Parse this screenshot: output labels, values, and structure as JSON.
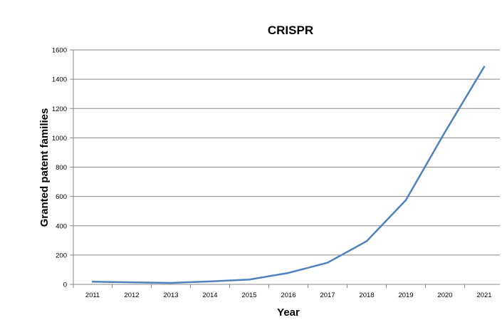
{
  "chart_data": {
    "type": "line",
    "title": "CRISPR",
    "xlabel": "Year",
    "ylabel": "Granted patent families",
    "categories": [
      "2011",
      "2012",
      "2013",
      "2014",
      "2015",
      "2016",
      "2017",
      "2018",
      "2019",
      "2020",
      "2021"
    ],
    "series": [
      {
        "values": [
          18,
          14,
          10,
          20,
          33,
          78,
          148,
          295,
          575,
          1040,
          1485
        ]
      }
    ],
    "ylim": [
      0,
      1600
    ],
    "yticks": [
      0,
      200,
      400,
      600,
      800,
      1000,
      1200,
      1400,
      1600
    ],
    "grid": true,
    "legend": "none",
    "colors": {
      "line": "#4f81bd"
    }
  }
}
